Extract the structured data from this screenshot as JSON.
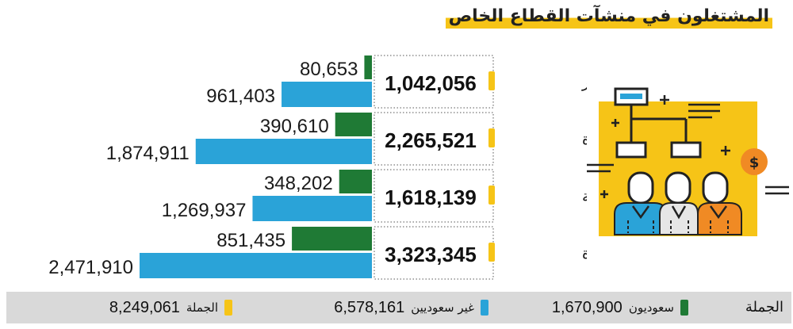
{
  "title": "المشتغلون في منشآت القطاع الخاص",
  "colors": {
    "saudi": "#1f7a35",
    "non_saudi": "#2aa3d8",
    "total": "#f6c417",
    "summary_bg": "#d9d9d9"
  },
  "chart_data": {
    "type": "bar",
    "orientation": "horizontal",
    "title": "المشتغلون في منشآت القطاع الخاص",
    "categories": [
      "متناهية الصغر",
      "صغيرة",
      "متوسطة",
      "كبيرة"
    ],
    "series": [
      {
        "name": "سعوديون",
        "color": "#1f7a35",
        "values": [
          80653,
          390610,
          348202,
          851435
        ],
        "labels": [
          "80,653",
          "390,610",
          "348,202",
          "851,435"
        ]
      },
      {
        "name": "غير سعوديين",
        "color": "#2aa3d8",
        "values": [
          961403,
          1874911,
          1269937,
          2471910
        ],
        "labels": [
          "961,403",
          "1,874,911",
          "1,269,937",
          "2,471,910"
        ]
      }
    ],
    "totals": [
      1042056,
      2265521,
      1618139,
      3323345
    ],
    "total_labels": [
      "1,042,056",
      "2,265,521",
      "1,618,139",
      "3,323,345"
    ],
    "xlim": [
      0,
      2471910
    ]
  },
  "summary": {
    "heading": "الجملة",
    "saudi": {
      "label": "سعوديون",
      "value": "1,670,900"
    },
    "non_saudi": {
      "label": "غير سعوديين",
      "value": "6,578,161"
    },
    "total": {
      "label": "الجملة",
      "value": "8,249,061"
    }
  },
  "illustration": {
    "icons": [
      "org-chart-icon",
      "dollar-coin-icon",
      "people-icon"
    ],
    "symbol": "$"
  }
}
